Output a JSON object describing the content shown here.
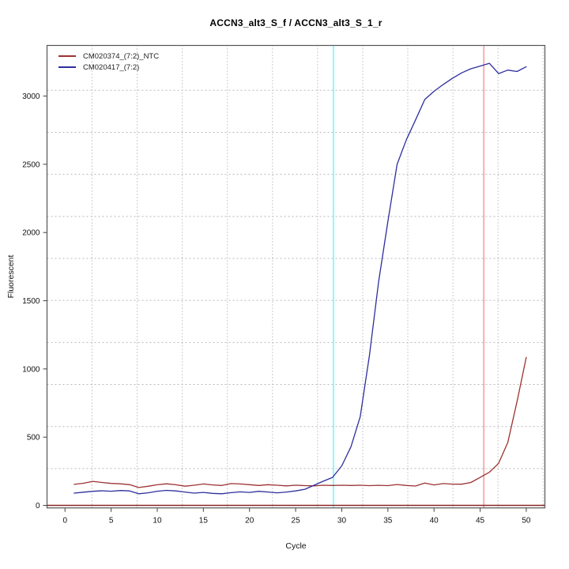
{
  "title": "ACCN3_alt3_S_f / ACCN3_alt3_S_1_r",
  "chart_data": {
    "type": "line",
    "title": "ACCN3_alt3_S_f / ACCN3_alt3_S_1_r",
    "xlabel": "Cycle",
    "ylabel": "Fluorescent",
    "x": [
      1,
      2,
      3,
      4,
      5,
      6,
      7,
      8,
      9,
      10,
      11,
      12,
      13,
      14,
      15,
      16,
      17,
      18,
      19,
      20,
      21,
      22,
      23,
      24,
      25,
      26,
      27,
      28,
      29,
      30,
      31,
      32,
      33,
      34,
      35,
      36,
      37,
      38,
      39,
      40,
      41,
      42,
      43,
      44,
      45,
      46,
      47,
      48,
      49,
      50
    ],
    "series": [
      {
        "name": "CM020374_(7:2)_NTC",
        "color": "#9c3332",
        "values": [
          154,
          162,
          176,
          168,
          161,
          158,
          152,
          131,
          140,
          151,
          158,
          151,
          141,
          148,
          157,
          150,
          146,
          160,
          157,
          152,
          146,
          152,
          148,
          143,
          148,
          145,
          143,
          148,
          146,
          148,
          146,
          148,
          145,
          147,
          145,
          153,
          146,
          142,
          164,
          150,
          160,
          156,
          155,
          168,
          205,
          243,
          308,
          462,
          760,
          1085
        ]
      },
      {
        "name": "CM020417_(7:2)",
        "color": "#2e2e9e",
        "values": [
          90,
          97,
          103,
          107,
          104,
          109,
          106,
          85,
          92,
          104,
          110,
          106,
          98,
          90,
          95,
          88,
          85,
          93,
          99,
          95,
          103,
          98,
          92,
          98,
          106,
          118,
          148,
          177,
          205,
          290,
          430,
          650,
          1100,
          1640,
          2080,
          2500,
          2680,
          2825,
          2975,
          3035,
          3085,
          3130,
          3170,
          3200,
          3220,
          3240,
          3165,
          3190,
          3180,
          3215
        ]
      }
    ],
    "baseline": {
      "value": 0,
      "color": "#8b2323"
    },
    "vlines": [
      {
        "x": 29.1,
        "color": "#7dfcfc",
        "name": "threshold-cycle-marker-sample"
      },
      {
        "x": 45.4,
        "color": "#f2a9a9",
        "name": "threshold-cycle-marker-ntc"
      }
    ],
    "xticks": [
      0,
      5,
      10,
      15,
      20,
      25,
      30,
      35,
      40,
      45,
      50
    ],
    "yticks": [
      0,
      500,
      1000,
      1500,
      2000,
      2500,
      3000
    ],
    "xlim": [
      -1.95,
      52.02
    ],
    "ylim": [
      -18.5,
      3371
    ],
    "grid": {
      "on": true,
      "vlines_x": [
        2.93,
        7.82,
        12.71,
        17.6,
        22.49,
        27.38,
        32.27,
        37.16,
        42.05,
        46.94,
        51.83
      ],
      "hlines_y": [
        270,
        578,
        886,
        1194,
        1502,
        1810,
        2118,
        2426,
        2734,
        3042
      ]
    },
    "legend_position": "top-left"
  }
}
